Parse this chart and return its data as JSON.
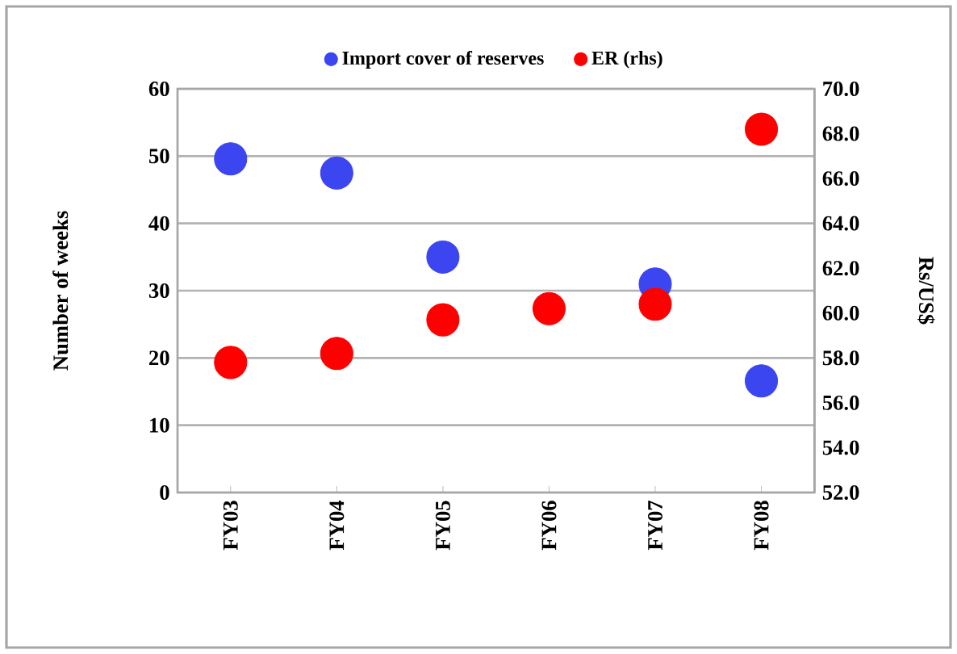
{
  "chart_data": {
    "type": "scatter",
    "categories": [
      "FY03",
      "FY04",
      "FY05",
      "FY06",
      "FY07",
      "FY08"
    ],
    "series": [
      {
        "name": "Import cover of reserves",
        "color": "#3b46f0",
        "values": [
          49.6,
          47.5,
          35,
          null,
          31,
          16.6
        ]
      },
      {
        "name": "ER (rhs)",
        "color": "#ff0000",
        "axis": "y2",
        "values": [
          57.8,
          58.2,
          59.7,
          60.2,
          60.4,
          68.2
        ]
      }
    ],
    "ylabel": "Number of weeks",
    "y2label": "Rs/US$",
    "ylim": [
      0,
      60
    ],
    "yticks": [
      0,
      10,
      20,
      30,
      40,
      50,
      60
    ],
    "y2lim": [
      52,
      70
    ],
    "y2ticks": [
      {
        "value": 52,
        "label": "52.0"
      },
      {
        "value": 54,
        "label": "54.0"
      },
      {
        "value": 56,
        "label": "56.0"
      },
      {
        "value": 58,
        "label": "58.0"
      },
      {
        "value": 60,
        "label": "60.0"
      },
      {
        "value": 62,
        "label": "62.0"
      },
      {
        "value": 64,
        "label": "64.0"
      },
      {
        "value": 66,
        "label": "66.0"
      },
      {
        "value": 68,
        "label": "68.0"
      },
      {
        "value": 70,
        "label": "70.0"
      }
    ],
    "grid": "y",
    "legend": "top"
  }
}
